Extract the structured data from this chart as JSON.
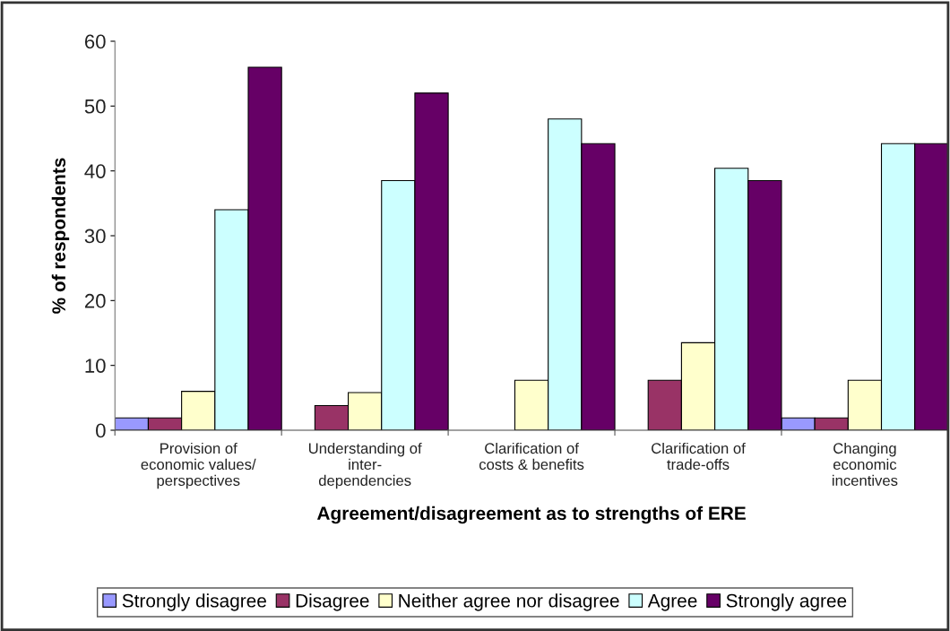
{
  "chart_data": {
    "type": "bar",
    "xlabel": "Agreement/disagreement as to strengths of ERE",
    "ylabel": "% of respondents",
    "categories": [
      "Provision of\neconomic values/\nperspectives",
      "Understanding of\ninter-\ndependencies",
      "Clarification of\ncosts & benefits",
      "Clarification of\ntrade-offs",
      "Changing\neconomic\nincentives"
    ],
    "series": [
      {
        "name": "Strongly disagree",
        "color": "#9999ff",
        "values": [
          1.9,
          null,
          null,
          null,
          1.9
        ]
      },
      {
        "name": "Disagree",
        "color": "#993366",
        "values": [
          1.9,
          3.8,
          null,
          7.7,
          1.9
        ]
      },
      {
        "name": "Neither agree nor disagree",
        "color": "#ffffcc",
        "values": [
          6,
          5.8,
          7.7,
          13.5,
          7.7
        ]
      },
      {
        "name": "Agree",
        "color": "#ccffff",
        "values": [
          34,
          38.5,
          48,
          40.4,
          44.2
        ]
      },
      {
        "name": "Strongly agree",
        "color": "#660066",
        "values": [
          56,
          52,
          44.2,
          38.5,
          44.2
        ]
      }
    ],
    "ylim": [
      0,
      60
    ],
    "yticks": [
      0,
      10,
      20,
      30,
      40,
      50,
      60
    ],
    "grid": false,
    "legend": "bottom"
  }
}
